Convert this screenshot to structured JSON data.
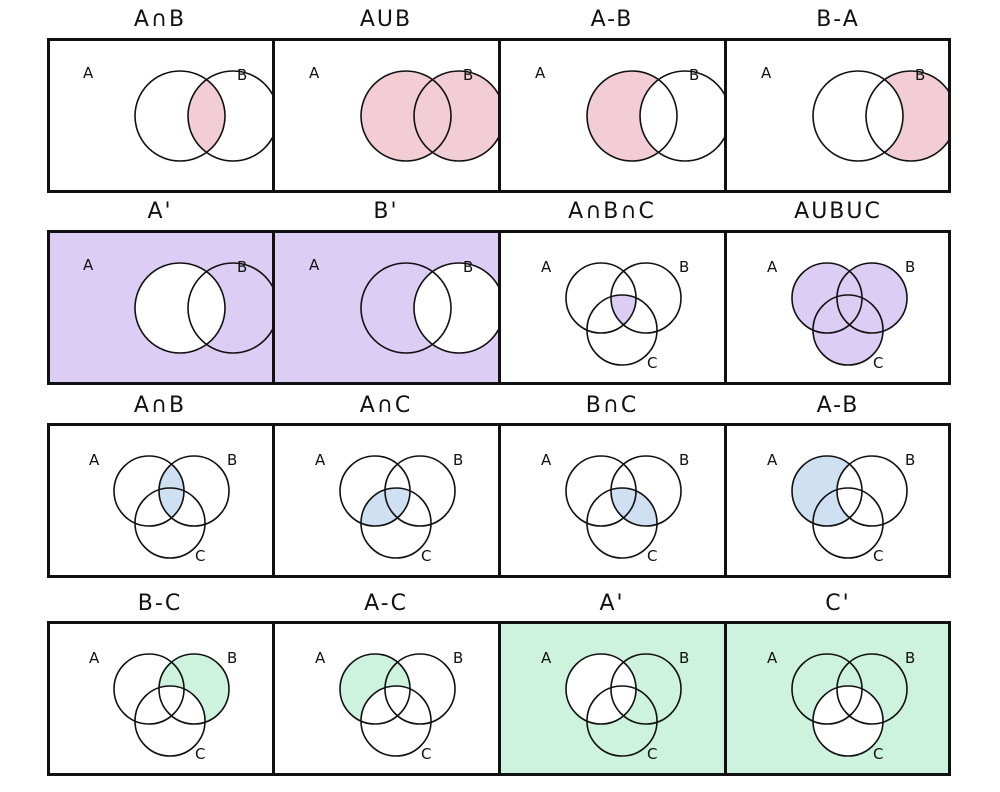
{
  "colors": {
    "pink": "#f3cdd6",
    "purple": "#dccdf5",
    "blue": "#cfe0f3",
    "green": "#cdf3df",
    "white": "#ffffff",
    "stroke": "#111111"
  },
  "rows": [
    {
      "palette": "pink",
      "panels": [
        {
          "title": "A∩B",
          "kind": "two",
          "region": "AB",
          "bg": false,
          "labels": [
            "A",
            "B"
          ]
        },
        {
          "title": "AUB",
          "kind": "two",
          "region": "AuB",
          "bg": false,
          "labels": [
            "A",
            "B"
          ]
        },
        {
          "title": "A-B",
          "kind": "two",
          "region": "A-B",
          "bg": false,
          "labels": [
            "A",
            "B"
          ]
        },
        {
          "title": "B-A",
          "kind": "two",
          "region": "B-A",
          "bg": false,
          "labels": [
            "A",
            "B"
          ]
        }
      ]
    },
    {
      "palette": "purple",
      "panels": [
        {
          "title": "A'",
          "kind": "two",
          "region": "notA",
          "bg": true,
          "labels": [
            "A",
            "B"
          ]
        },
        {
          "title": "B'",
          "kind": "two",
          "region": "notB",
          "bg": true,
          "labels": [
            "A",
            "B"
          ]
        },
        {
          "title": "A∩B∩C",
          "kind": "three",
          "region": "ABC",
          "bg": false,
          "labels": [
            "A",
            "B",
            "C"
          ]
        },
        {
          "title": "AUBUC",
          "kind": "three",
          "region": "all",
          "bg": false,
          "labels": [
            "A",
            "B",
            "C"
          ]
        }
      ]
    },
    {
      "palette": "blue",
      "panels": [
        {
          "title": "A∩B",
          "kind": "three",
          "region": "AB",
          "bg": false,
          "labels": [
            "A",
            "B",
            "C"
          ]
        },
        {
          "title": "A∩C",
          "kind": "three",
          "region": "AC",
          "bg": false,
          "labels": [
            "A",
            "B",
            "C"
          ]
        },
        {
          "title": "B∩C",
          "kind": "three",
          "region": "BC",
          "bg": false,
          "labels": [
            "A",
            "B",
            "C"
          ]
        },
        {
          "title": "A-B",
          "kind": "three",
          "region": "A-B",
          "bg": false,
          "labels": [
            "A",
            "B",
            "C"
          ]
        }
      ]
    },
    {
      "palette": "green",
      "panels": [
        {
          "title": "B-C",
          "kind": "three",
          "region": "B-C",
          "bg": false,
          "labels": [
            "A",
            "B",
            "C"
          ]
        },
        {
          "title": "A-C",
          "kind": "three",
          "region": "A-C",
          "bg": false,
          "labels": [
            "A",
            "B",
            "C"
          ]
        },
        {
          "title": "A'",
          "kind": "three",
          "region": "notA",
          "bg": true,
          "labels": [
            "A",
            "B",
            "C"
          ]
        },
        {
          "title": "C'",
          "kind": "three",
          "region": "notC",
          "bg": true,
          "labels": [
            "A",
            "B",
            "C"
          ]
        }
      ]
    }
  ]
}
